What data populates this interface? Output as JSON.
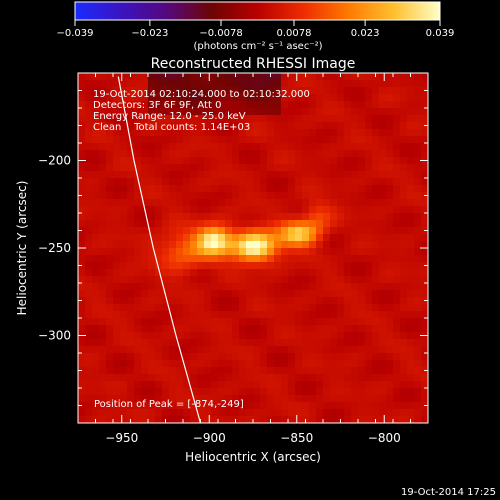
{
  "chart_data": {
    "type": "heatmap",
    "title": "Reconstructed RHESSI Image",
    "xlabel": "Heliocentric X (arcsec)",
    "ylabel": "Heliocentric Y (arcsec)",
    "xlim": [
      -975,
      -775
    ],
    "ylim": [
      -350,
      -150
    ],
    "xticks": [
      -950,
      -900,
      -850,
      -800
    ],
    "xticklabels": [
      "−950",
      "−900",
      "−850",
      "−800"
    ],
    "yticks": [
      -200,
      -250,
      -300
    ],
    "yticklabels": [
      "−200",
      "−250",
      "−300"
    ],
    "colorbar": {
      "min": -0.039,
      "max": 0.039,
      "ticks": [
        -0.039,
        -0.023,
        -0.0078,
        0.0078,
        0.023,
        0.039
      ],
      "ticklabels": [
        "−0.039",
        "−0.023",
        "−0.0078",
        "0.0078",
        "0.023",
        "0.039"
      ],
      "units_label": "(photons cm⁻² s⁻¹ asec⁻²)",
      "colors": [
        "#1a2cff",
        "#3a14c0",
        "#55087e",
        "#6e0404",
        "#b80000",
        "#ee2c00",
        "#ff7a00",
        "#ffc030",
        "#ffffc8"
      ]
    },
    "annotations": [
      "19-Oct-2014 02:10:24.000 to 02:10:32.000",
      "Detectors: 3F 6F 9F, Att 0",
      "Energy Range: 12.0 - 25.0 keV",
      "Clean    Total counts: 1.14E+03"
    ],
    "peak_position_label": "Position of Peak = [-874,-249]",
    "peak": {
      "x": -874,
      "y": -249,
      "value": 0.039
    },
    "sources": [
      {
        "x": -897,
        "y": -246,
        "sx": 7,
        "sy": 6,
        "amp": 0.034
      },
      {
        "x": -874,
        "y": -249,
        "sx": 9,
        "sy": 6,
        "amp": 0.039
      },
      {
        "x": -849,
        "y": -242,
        "sx": 8,
        "sy": 5,
        "amp": 0.029
      },
      {
        "x": -915,
        "y": -252,
        "sx": 10,
        "sy": 8,
        "amp": 0.014
      },
      {
        "x": -838,
        "y": -232,
        "sx": 6,
        "sy": 6,
        "amp": 0.01
      }
    ],
    "background_level": 0.0035,
    "limb_curve": [
      {
        "x": -952,
        "y": -152
      },
      {
        "x": -943,
        "y": -200
      },
      {
        "x": -932,
        "y": -250
      },
      {
        "x": -919,
        "y": -300
      },
      {
        "x": -905,
        "y": -350
      }
    ],
    "grid": false
  },
  "footer": {
    "timestamp": "19-Oct-2014 17:25"
  }
}
